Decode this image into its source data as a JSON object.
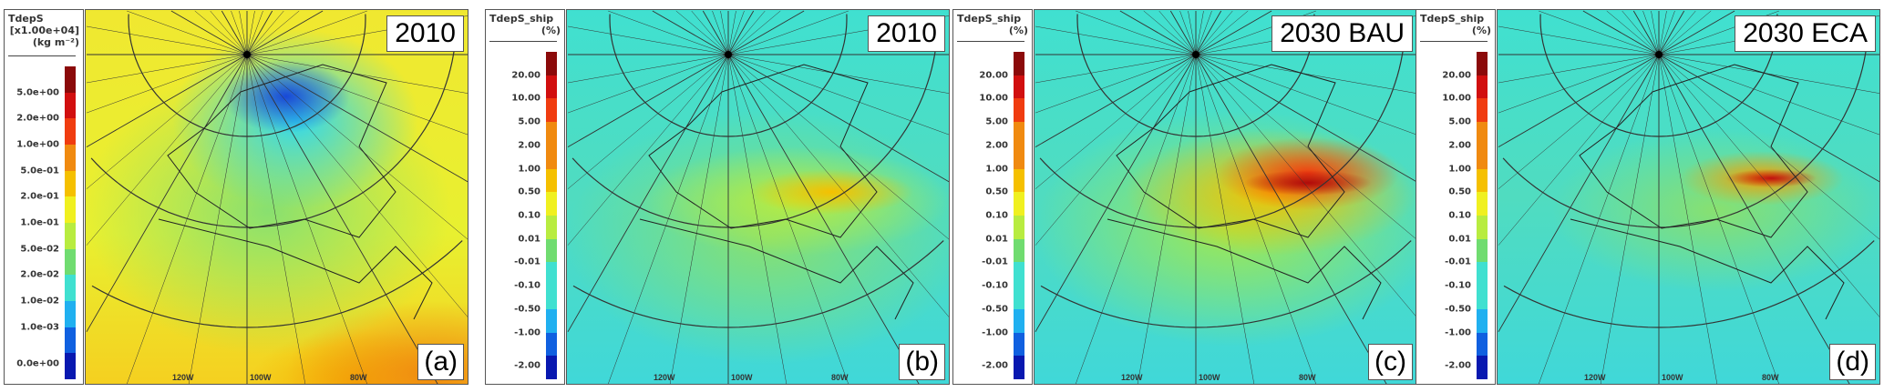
{
  "colors": {
    "scale": [
      "#8b0a0a",
      "#d10f0f",
      "#f03c10",
      "#f08a10",
      "#f5c000",
      "#f0f020",
      "#b8ec40",
      "#70dc70",
      "#40e0d0",
      "#20b0f0",
      "#1060e0",
      "#0818b0"
    ]
  },
  "panels": [
    {
      "cbar_title": "TdepS",
      "cbar_scale": "[x1.00e+04]",
      "cbar_units": "(kg m⁻²)",
      "cbar_labels": [
        "5.0e+00",
        "2.0e+00",
        "1.0e+00",
        "5.0e-01",
        "2.0e-01",
        "1.0e-01",
        "5.0e-02",
        "2.0e-02",
        "1.0e-02",
        "1.0e-03",
        "0.0e+00"
      ],
      "year": "2010",
      "letter": "(a)",
      "style": "total"
    },
    {
      "cbar_title": "TdepS_ship",
      "cbar_units": "(%)",
      "cbar_labels": [
        "20.00",
        "10.00",
        "5.00",
        "2.00",
        "1.00",
        "0.50",
        "0.10",
        "0.01",
        "-0.01",
        "-0.10",
        "-0.50",
        "-1.00",
        "-2.00"
      ],
      "year": "2010",
      "letter": "(b)",
      "style": "ship1"
    },
    {
      "cbar_title": "TdepS_ship",
      "cbar_units": "(%)",
      "cbar_labels": [
        "20.00",
        "10.00",
        "5.00",
        "2.00",
        "1.00",
        "0.50",
        "0.10",
        "0.01",
        "-0.01",
        "-0.10",
        "-0.50",
        "-1.00",
        "-2.00"
      ],
      "year": "2030 BAU",
      "letter": "(c)",
      "style": "ship2"
    },
    {
      "cbar_title": "TdepS_ship",
      "cbar_units": "(%)",
      "cbar_labels": [
        "20.00",
        "10.00",
        "5.00",
        "2.00",
        "1.00",
        "0.50",
        "0.10",
        "0.01",
        "-0.01",
        "-0.10",
        "-0.50",
        "-1.00",
        "-2.00"
      ],
      "year": "2030 ECA",
      "letter": "(d)",
      "style": "ship3"
    }
  ],
  "lon_labels": [
    "120W",
    "100W",
    "80W"
  ]
}
